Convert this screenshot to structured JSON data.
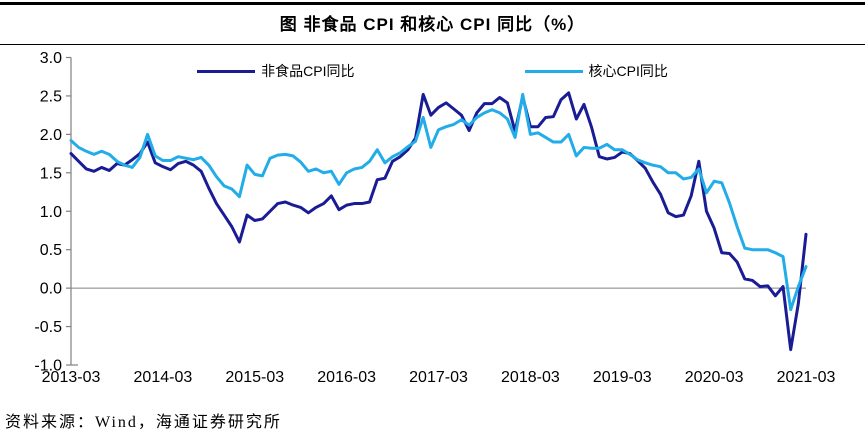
{
  "header": {
    "title": "图 非食品 CPI 和核心 CPI 同比（%）"
  },
  "legend": [
    {
      "id": "nonfood-cpi",
      "label": "非食品CPI同比",
      "color": "#191C94"
    },
    {
      "id": "core-cpi",
      "label": "核心CPI同比",
      "color": "#22ACE8"
    }
  ],
  "source": {
    "text": "资料来源：Wind，海通证券研究所"
  },
  "colors": {
    "axis": "#808080",
    "zero_line": "#808080",
    "text": "#000000"
  },
  "chart_data": {
    "type": "line",
    "title": "图 非食品 CPI 和核心 CPI 同比（%）",
    "xlabel": "",
    "ylabel": "",
    "ylim": [
      -1.0,
      3.0
    ],
    "y_ticks": [
      3.0,
      2.5,
      2.0,
      1.5,
      1.0,
      0.5,
      0.0,
      -0.5,
      -1.0
    ],
    "x_tick_labels": [
      "2013-03",
      "2014-03",
      "2015-03",
      "2016-03",
      "2017-03",
      "2018-03",
      "2019-03",
      "2020-03",
      "2021-03"
    ],
    "x_start": "2013-03",
    "x_end": "2021-03",
    "x_frequency": "monthly",
    "grid": "zero-line-only",
    "legend_position": "top",
    "series": [
      {
        "id": "nonfood-cpi",
        "name": "非食品CPI同比",
        "color": "#191C94",
        "values": [
          1.75,
          1.65,
          1.55,
          1.52,
          1.57,
          1.53,
          1.62,
          1.6,
          1.67,
          1.75,
          1.9,
          1.63,
          1.58,
          1.54,
          1.62,
          1.65,
          1.6,
          1.52,
          1.3,
          1.1,
          0.95,
          0.8,
          0.6,
          0.95,
          0.88,
          0.9,
          1.0,
          1.1,
          1.12,
          1.08,
          1.05,
          0.98,
          1.05,
          1.1,
          1.2,
          1.02,
          1.08,
          1.1,
          1.1,
          1.12,
          1.41,
          1.43,
          1.65,
          1.71,
          1.8,
          1.95,
          2.52,
          2.25,
          2.35,
          2.41,
          2.33,
          2.25,
          2.05,
          2.28,
          2.4,
          2.4,
          2.48,
          2.41,
          2.04,
          2.49,
          2.1,
          2.1,
          2.22,
          2.23,
          2.45,
          2.54,
          2.2,
          2.39,
          2.09,
          1.71,
          1.68,
          1.7,
          1.77,
          1.75,
          1.66,
          1.56,
          1.38,
          1.22,
          0.98,
          0.93,
          0.95,
          1.2,
          1.65,
          1.0,
          0.78,
          0.46,
          0.45,
          0.34,
          0.12,
          0.1,
          0.02,
          0.03,
          -0.1,
          0.02,
          -0.8,
          -0.2,
          0.7
        ]
      },
      {
        "id": "core-cpi",
        "name": "核心CPI同比",
        "color": "#22ACE8",
        "values": [
          1.92,
          1.83,
          1.78,
          1.74,
          1.78,
          1.74,
          1.65,
          1.6,
          1.57,
          1.7,
          2.0,
          1.72,
          1.66,
          1.66,
          1.71,
          1.69,
          1.67,
          1.7,
          1.6,
          1.45,
          1.33,
          1.29,
          1.19,
          1.6,
          1.48,
          1.46,
          1.69,
          1.73,
          1.74,
          1.72,
          1.64,
          1.52,
          1.55,
          1.5,
          1.52,
          1.35,
          1.5,
          1.55,
          1.57,
          1.65,
          1.8,
          1.63,
          1.71,
          1.76,
          1.84,
          1.91,
          2.22,
          1.83,
          2.06,
          2.1,
          2.13,
          2.19,
          2.12,
          2.22,
          2.28,
          2.32,
          2.28,
          2.2,
          1.96,
          2.52,
          2.0,
          2.02,
          1.96,
          1.9,
          1.9,
          2.0,
          1.72,
          1.83,
          1.82,
          1.82,
          1.87,
          1.8,
          1.8,
          1.74,
          1.67,
          1.63,
          1.6,
          1.58,
          1.5,
          1.5,
          1.42,
          1.44,
          1.55,
          1.24,
          1.39,
          1.37,
          1.11,
          0.8,
          0.52,
          0.5,
          0.5,
          0.5,
          0.46,
          0.41,
          -0.28,
          0.02,
          0.28
        ]
      }
    ]
  }
}
